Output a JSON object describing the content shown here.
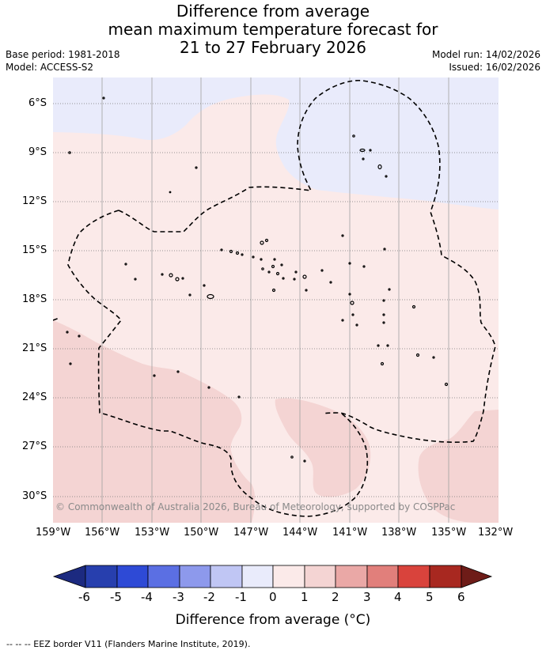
{
  "title": {
    "line1": "Difference from average",
    "line2": "mean maximum temperature forecast for",
    "line3": "21 to 27 February 2026"
  },
  "meta": {
    "base_period": "Base period: 1981-2018",
    "model": "Model: ACCESS-S2",
    "model_run": "Model run: 14/02/2026",
    "issued": "Issued: 16/02/2026"
  },
  "map": {
    "lat_labels": [
      "6°S",
      "9°S",
      "12°S",
      "15°S",
      "18°S",
      "21°S",
      "24°S",
      "27°S",
      "30°S"
    ],
    "lon_labels": [
      "159°W",
      "156°W",
      "153°W",
      "150°W",
      "147°W",
      "144°W",
      "141°W",
      "138°W",
      "135°W",
      "132°W"
    ],
    "copyright": "© Commonwealth of Australia 2026, Bureau of Meteorology, supported by COSPPac",
    "colors": {
      "cat_minus1_0": "#e9ebfb",
      "cat_0_1": "#fbeae9",
      "cat_1_2": "#f4d4d3",
      "eez_line": "#000000",
      "grid_line": "#a0a0a0"
    }
  },
  "colorbar": {
    "ticks": [
      "-6",
      "-5",
      "-4",
      "-3",
      "-2",
      "-1",
      "0",
      "1",
      "2",
      "3",
      "4",
      "5",
      "6"
    ],
    "colors": [
      "#273fae",
      "#2e4ad6",
      "#5b6fe3",
      "#8d99ec",
      "#c0c6f4",
      "#e9ebfb",
      "#fbeae9",
      "#f4d4d3",
      "#eaa8a6",
      "#e17f7b",
      "#d9433c",
      "#a82820"
    ],
    "under_color": "#1c2a80",
    "over_color": "#6e1c18",
    "label": "Difference from average (°C)"
  },
  "footnote": "-- -- -- EEZ border V11 (Flanders Marine Institute, 2019)."
}
